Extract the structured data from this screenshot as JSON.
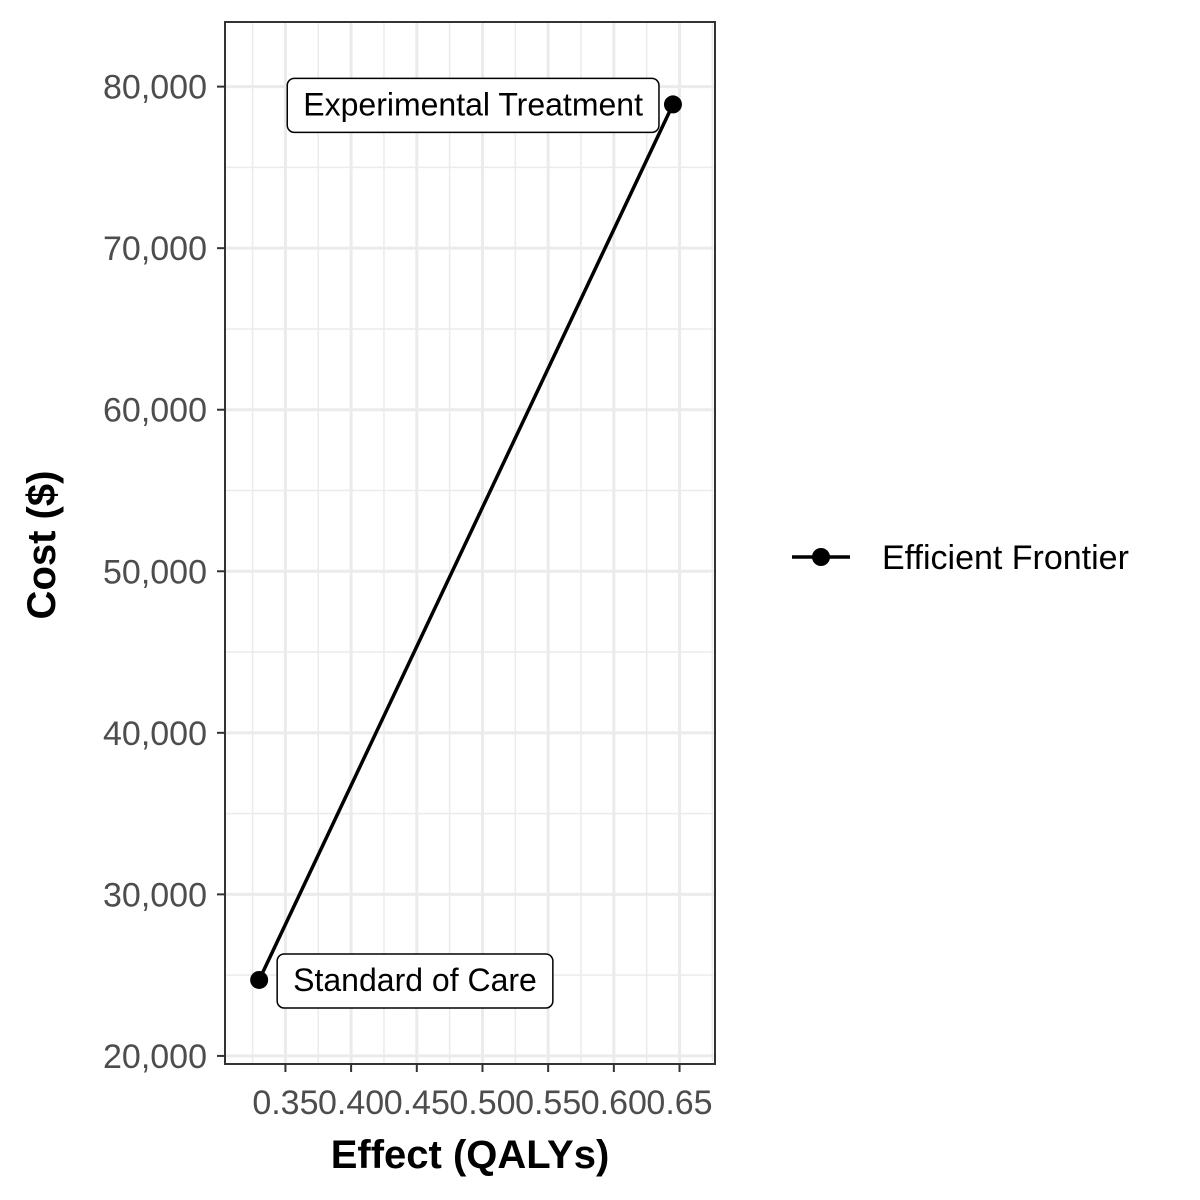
{
  "chart_data": {
    "type": "line",
    "xlabel": "Effect (QALYs)",
    "ylabel": "Cost ($)",
    "xlim": [
      0.304,
      0.677
    ],
    "ylim": [
      19500,
      84000
    ],
    "x_ticks": [
      0.35,
      0.4,
      0.45,
      0.5,
      0.55,
      0.6,
      0.65
    ],
    "x_tick_labels": [
      "0.35",
      "0.40",
      "0.45",
      "0.50",
      "0.55",
      "0.60",
      "0.65"
    ],
    "y_ticks": [
      20000,
      30000,
      40000,
      50000,
      60000,
      70000,
      80000
    ],
    "y_tick_labels": [
      "20,000",
      "30,000",
      "40,000",
      "50,000",
      "60,000",
      "70,000",
      "80,000"
    ],
    "grid": true,
    "legend_position": "right",
    "series": [
      {
        "name": "Efficient Frontier",
        "color": "#000000",
        "points": [
          {
            "label": "Standard of Care",
            "x": 0.33,
            "y": 24700
          },
          {
            "label": "Experimental Treatment",
            "x": 0.645,
            "y": 78900
          }
        ]
      }
    ],
    "annotations": [
      {
        "text": "Standard of Care",
        "point": 0,
        "side": "right"
      },
      {
        "text": "Experimental Treatment",
        "point": 1,
        "side": "left"
      }
    ]
  }
}
